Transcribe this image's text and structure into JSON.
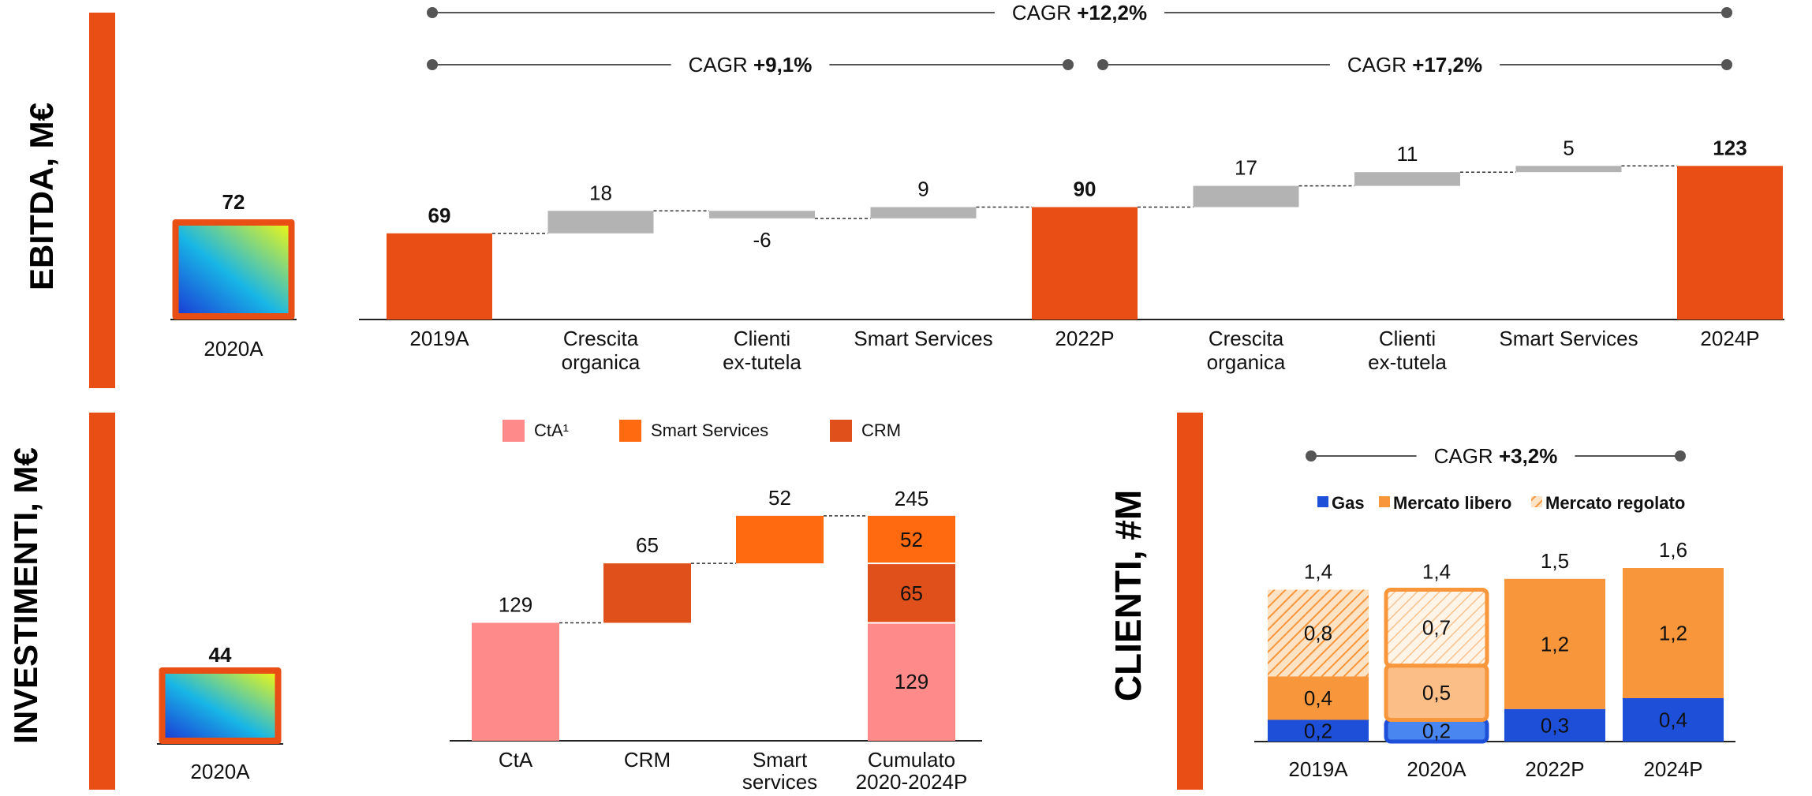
{
  "colors": {
    "accent": "#E94E15",
    "grey": "#B3B3B3",
    "pink": "#FF8A8A",
    "smart": "#FF6A10",
    "crm": "#E0501A",
    "gas": "#1D4FD9",
    "libero": "#F7963A"
  },
  "sections": {
    "ebitda": "EBITDA, M€",
    "investimenti": "INVESTIMENTI, M€",
    "clienti": "CLIENTI, #M"
  },
  "chart_data": [
    {
      "type": "bar",
      "title": "",
      "categories": [
        "2020A"
      ],
      "values": [
        72
      ],
      "value_labels": [
        "72"
      ],
      "icon": "gradient-square-icon"
    },
    {
      "type": "bar",
      "subtype": "waterfall",
      "categories": [
        "2019A",
        "Crescita\norganica",
        "Clienti\nex-tutela",
        "Smart Services",
        "2022P",
        "Crescita\norganica",
        "Clienti\nex-tutela",
        "Smart Services",
        "2024P"
      ],
      "values": [
        69,
        18,
        -6,
        9,
        90,
        17,
        11,
        5,
        123
      ],
      "value_labels": [
        "69",
        "18",
        "-6",
        "9",
        "90",
        "17",
        "11",
        "5",
        "123"
      ],
      "kinds": [
        "total",
        "delta",
        "delta",
        "delta",
        "total",
        "delta",
        "delta",
        "delta",
        "total"
      ],
      "cagr": [
        {
          "prefix": "CAGR ",
          "value": "+12,2%"
        },
        {
          "prefix": "CAGR ",
          "value": "+9,1%"
        },
        {
          "prefix": "CAGR ",
          "value": "+17,2%"
        }
      ],
      "ylim": [
        0,
        130
      ]
    },
    {
      "type": "bar",
      "categories": [
        "2020A"
      ],
      "values": [
        44
      ],
      "value_labels": [
        "44"
      ],
      "icon": "gradient-square-icon"
    },
    {
      "type": "bar",
      "subtype": "waterfall",
      "legend": [
        "CtA¹",
        "Smart Services",
        "CRM"
      ],
      "categories": [
        "CtA",
        "CRM",
        "Smart\nservices",
        "Cumulato\n2020-2024P"
      ],
      "values": [
        129,
        65,
        52,
        245
      ],
      "value_labels": [
        "129",
        "65",
        "52",
        "245"
      ],
      "stack": [
        {
          "name": "CtA",
          "value": 129
        },
        {
          "name": "CRM",
          "value": 65
        },
        {
          "name": "Smart Services",
          "value": 52
        }
      ],
      "ylim": [
        0,
        260
      ]
    },
    {
      "type": "bar",
      "subtype": "stacked",
      "legend": [
        "Gas",
        "Mercato libero",
        "Mercato regolato"
      ],
      "categories": [
        "2019A",
        "2020A",
        "2022P",
        "2024P"
      ],
      "totals": [
        "1,4",
        "1,4",
        "1,5",
        "1,6"
      ],
      "series": [
        {
          "name": "Gas",
          "values": [
            0.2,
            0.2,
            0.3,
            0.4
          ],
          "labels": [
            "0,2",
            "0,2",
            "0,3",
            "0,4"
          ]
        },
        {
          "name": "Mercato libero",
          "values": [
            0.4,
            0.5,
            1.2,
            1.2
          ],
          "labels": [
            "0,4",
            "0,5",
            "1,2",
            "1,2"
          ]
        },
        {
          "name": "Mercato regolato",
          "values": [
            0.8,
            0.7,
            0,
            0
          ],
          "labels": [
            "0,8",
            "0,7",
            "",
            ""
          ]
        }
      ],
      "cagr": {
        "prefix": "CAGR ",
        "value": "+3,2%"
      },
      "ylim": [
        0,
        1.6
      ]
    }
  ]
}
